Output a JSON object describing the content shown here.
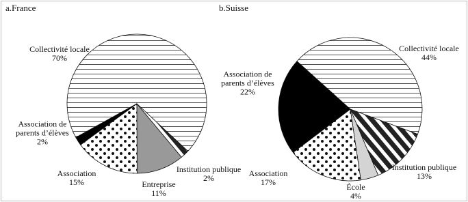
{
  "chart_data": [
    {
      "type": "pie",
      "title": "a.France",
      "categories": [
        "Collectivité locale",
        "Institution publique",
        "Entreprise",
        "Association",
        "Association de parents d’élèves"
      ],
      "values": [
        70,
        2,
        11,
        15,
        2
      ],
      "value_labels": [
        "70%",
        "2%",
        "11%",
        "15%",
        "2%"
      ],
      "patterns": [
        "hlines",
        "diagonal",
        "gray",
        "dots",
        "black"
      ]
    },
    {
      "type": "pie",
      "title": "b.Suisse",
      "categories": [
        "Collectivité locale",
        "Institution publique",
        "École",
        "Association",
        "Association de parents d’élèves"
      ],
      "values": [
        44,
        13,
        4,
        17,
        22
      ],
      "value_labels": [
        "44%",
        "13%",
        "4%",
        "17%",
        "22%"
      ],
      "patterns": [
        "hlines",
        "diagonal",
        "lightgray",
        "dots",
        "black"
      ]
    }
  ]
}
